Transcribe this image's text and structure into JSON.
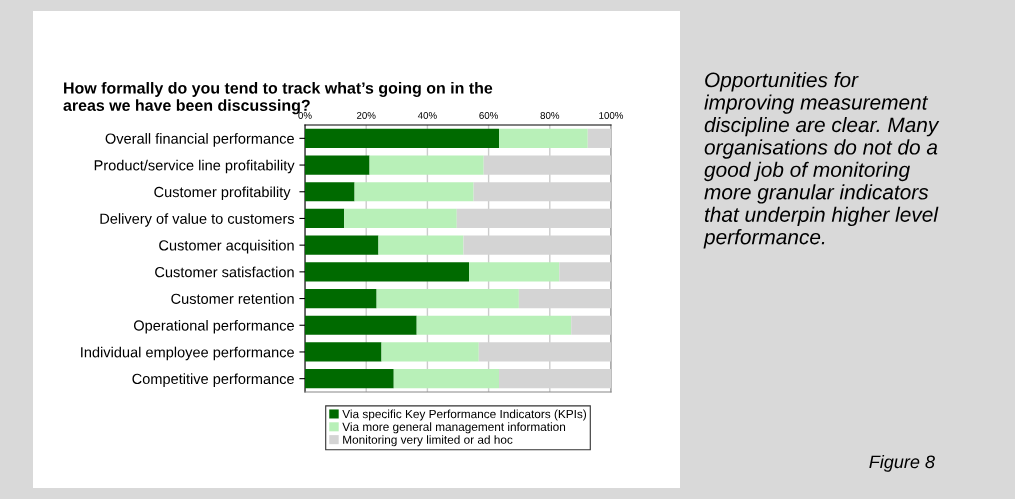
{
  "chart_data": {
    "type": "bar",
    "orientation": "horizontal",
    "stacked": true,
    "title": "How formally do you tend to track what’s going on in the\nareas we have been discussing?",
    "categories": [
      "Overall financial performance",
      "Product/service line profitability",
      "Customer profitability ",
      "Delivery of value to customers",
      "Customer acquisition",
      "Customer satisfaction",
      "Customer retention",
      "Operational performance",
      "Individual employee performance",
      "Competitive performance"
    ],
    "series": [
      {
        "name": "Via specific Key Performance Indicators (KPIs)",
        "color": "#006a00",
        "values": [
          63.4,
          21.1,
          16.2,
          12.8,
          24.0,
          53.6,
          23.4,
          36.5,
          25.0,
          29.0
        ]
      },
      {
        "name": "Via more general management information",
        "color": "#b8f0b8",
        "values": [
          29.0,
          37.3,
          38.9,
          36.8,
          27.8,
          29.5,
          46.5,
          50.5,
          31.8,
          34.4
        ]
      },
      {
        "name": "Monitoring very limited or ad hoc",
        "color": "#d4d4d4",
        "values": [
          7.6,
          41.6,
          44.9,
          50.4,
          48.2,
          16.9,
          30.1,
          13.0,
          43.2,
          36.6
        ]
      }
    ],
    "xlim": [
      0,
      100
    ],
    "xticks": [
      {
        "value": 0,
        "label": "0%"
      },
      {
        "value": 20,
        "label": "20%"
      },
      {
        "value": 40,
        "label": "40%"
      },
      {
        "value": 60,
        "label": "60%"
      },
      {
        "value": 80,
        "label": "80%"
      },
      {
        "value": 100,
        "label": "100%"
      }
    ],
    "grid": "x",
    "legend": "bottom",
    "annotations": [
      "Opportunities for\nimproving measurement\ndiscipline are clear. Many\norganisations do not do a\ngood job of monitoring\nmore granular indicators\nthat underpin higher level\nperformance.",
      "Figure 8"
    ]
  }
}
